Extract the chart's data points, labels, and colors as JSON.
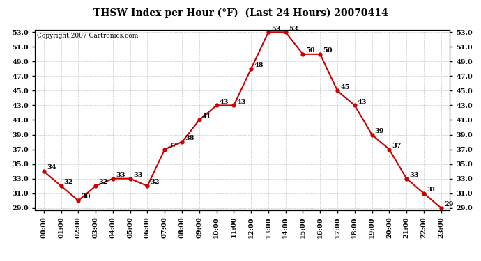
{
  "title": "THSW Index per Hour (°F)  (Last 24 Hours) 20070414",
  "copyright": "Copyright 2007 Cartronics.com",
  "hours": [
    "00:00",
    "01:00",
    "02:00",
    "03:00",
    "04:00",
    "05:00",
    "06:00",
    "07:00",
    "08:00",
    "09:00",
    "10:00",
    "11:00",
    "12:00",
    "13:00",
    "14:00",
    "15:00",
    "16:00",
    "17:00",
    "18:00",
    "19:00",
    "20:00",
    "21:00",
    "22:00",
    "23:00"
  ],
  "values": [
    34,
    32,
    30,
    32,
    33,
    33,
    32,
    37,
    38,
    41,
    43,
    43,
    48,
    53,
    53,
    50,
    50,
    45,
    43,
    39,
    37,
    33,
    31,
    29
  ],
  "line_color": "#cc0000",
  "marker_color": "#cc0000",
  "background_color": "#ffffff",
  "grid_color": "#cccccc",
  "ylim_min": 29.0,
  "ylim_max": 53.0,
  "ytick_step": 2.0,
  "fig_width": 6.9,
  "fig_height": 3.75,
  "dpi": 100
}
